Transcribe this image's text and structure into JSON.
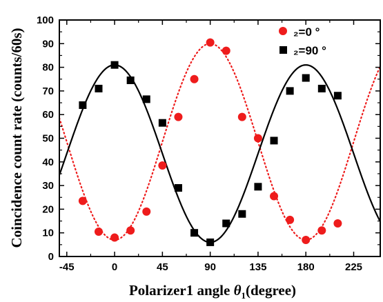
{
  "chart_data": {
    "type": "scatter",
    "xlabel_main": "Polarizer1 angle ",
    "xlabel_theta": "θ",
    "xlabel_sub": "1",
    "xlabel_unit": "(degree)",
    "ylabel": "Coincidence count rate (counts/60s)",
    "xlim": [
      -52,
      250
    ],
    "ylim": [
      0,
      100
    ],
    "x_ticks": [
      -45,
      0,
      45,
      90,
      135,
      180,
      225
    ],
    "y_ticks": [
      0,
      10,
      20,
      30,
      40,
      50,
      60,
      70,
      80,
      90,
      100
    ],
    "grid": false,
    "legend_position": "top-right",
    "series": [
      {
        "name_prefix": "₂=0",
        "name_suffix": " °",
        "marker": "circle",
        "color": "#ee1c1c",
        "x": [
          -30,
          -15,
          0,
          15,
          30,
          45,
          60,
          75,
          90,
          105,
          120,
          135,
          150,
          165,
          180,
          195,
          210
        ],
        "y": [
          23.5,
          10.5,
          8,
          11,
          19,
          38.5,
          59,
          75,
          90.5,
          87,
          59,
          50,
          25.5,
          15.5,
          7,
          11,
          14
        ],
        "fit": {
          "style": "dotted",
          "amplitude": 41.5,
          "offset": 48.5,
          "form": "offset - amplitude*cos(2x)"
        }
      },
      {
        "name_prefix": "₂=90",
        "name_suffix": " °",
        "marker": "square",
        "color": "#000000",
        "x": [
          -30,
          -15,
          0,
          15,
          30,
          45,
          60,
          75,
          90,
          105,
          120,
          135,
          150,
          165,
          180,
          195,
          210
        ],
        "y": [
          64,
          71,
          81,
          74.5,
          66.5,
          56.5,
          29,
          10,
          6,
          14,
          18,
          29.5,
          49,
          70,
          75.5,
          71,
          68
        ],
        "fit": {
          "style": "solid",
          "amplitude": 37.5,
          "offset": 43.5,
          "form": "offset + amplitude*cos(2x)"
        }
      }
    ]
  }
}
